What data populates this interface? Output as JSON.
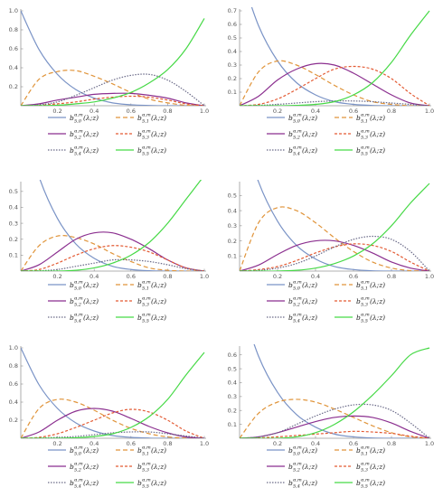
{
  "legend_style": {
    "b0": {
      "color": "#7a93c6",
      "dash": ""
    },
    "b1": {
      "color": "#e0943a",
      "dash": "5,3"
    },
    "b2": {
      "color": "#8b2f8f",
      "dash": ""
    },
    "b3": {
      "color": "#e35a33",
      "dash": "3,2"
    },
    "b4": {
      "color": "#6a6a88",
      "dash": "1.5,1.5"
    },
    "b5": {
      "color": "#46d946",
      "dash": ""
    }
  },
  "legend_entries": [
    {
      "key": "b0",
      "base": "b",
      "sup": "α,m",
      "sub": "5,0",
      "arg": "(λ;z)"
    },
    {
      "key": "b1",
      "base": "b",
      "sup": "α,m",
      "sub": "5,1",
      "arg": "(λ;z)"
    },
    {
      "key": "b2",
      "base": "b",
      "sup": "α,m",
      "sub": "5,2",
      "arg": "(λ;z)"
    },
    {
      "key": "b3",
      "base": "b",
      "sup": "α,m",
      "sub": "5,3",
      "arg": "(λ;z)"
    },
    {
      "key": "b4",
      "base": "b",
      "sup": "α,m",
      "sub": "5,4",
      "arg": "(λ;z)"
    },
    {
      "key": "b5",
      "base": "b",
      "sup": "α,m",
      "sub": "5,5",
      "arg": "(λ;z)"
    }
  ],
  "chart_data": [
    {
      "type": "line",
      "xlim": [
        0,
        1
      ],
      "ylim": [
        0,
        1.0
      ],
      "xticks": [
        "0.2",
        "0.4",
        "0.6",
        "0.8",
        "1.0"
      ],
      "yticks": [
        "0.2",
        "0.4",
        "0.6",
        "0.8",
        "1.0"
      ],
      "x": [
        0,
        0.1,
        0.2,
        0.3,
        0.4,
        0.5,
        0.6,
        0.7,
        0.8,
        0.9,
        1.0
      ],
      "series": [
        {
          "key": "b0",
          "values": [
            1.0,
            0.59,
            0.33,
            0.17,
            0.08,
            0.03,
            0.01,
            0.003,
            0.0,
            0.0,
            0.0
          ]
        },
        {
          "key": "b1",
          "values": [
            0.0,
            0.28,
            0.36,
            0.37,
            0.31,
            0.23,
            0.14,
            0.07,
            0.03,
            0.005,
            0.0
          ]
        },
        {
          "key": "b2",
          "values": [
            0.0,
            0.02,
            0.06,
            0.09,
            0.12,
            0.13,
            0.13,
            0.11,
            0.08,
            0.03,
            0.0
          ]
        },
        {
          "key": "b3",
          "values": [
            0.0,
            0.005,
            0.02,
            0.04,
            0.07,
            0.09,
            0.1,
            0.09,
            0.06,
            0.02,
            0.0
          ]
        },
        {
          "key": "b4",
          "values": [
            0.0,
            0.01,
            0.04,
            0.11,
            0.19,
            0.27,
            0.32,
            0.33,
            0.27,
            0.15,
            0.0
          ]
        },
        {
          "key": "b5",
          "values": [
            0.0,
            0.0,
            0.005,
            0.02,
            0.04,
            0.08,
            0.14,
            0.24,
            0.38,
            0.6,
            0.92
          ]
        }
      ]
    },
    {
      "type": "line",
      "xlim": [
        0,
        1
      ],
      "ylim": [
        0,
        0.7
      ],
      "xticks": [
        "0.2",
        "0.4",
        "0.6",
        "0.8",
        "1.0"
      ],
      "yticks": [
        "0.1",
        "0.2",
        "0.3",
        "0.4",
        "0.5",
        "0.6",
        "0.7"
      ],
      "x": [
        0,
        0.1,
        0.2,
        0.3,
        0.4,
        0.5,
        0.6,
        0.7,
        0.8,
        0.9,
        1.0
      ],
      "series": [
        {
          "key": "b0",
          "values": [
            1.0,
            0.59,
            0.33,
            0.17,
            0.08,
            0.03,
            0.01,
            0.002,
            0.0,
            0.0,
            0.0
          ]
        },
        {
          "key": "b1",
          "values": [
            0.0,
            0.25,
            0.33,
            0.3,
            0.23,
            0.15,
            0.08,
            0.03,
            0.01,
            0.0,
            0.0
          ]
        },
        {
          "key": "b2",
          "values": [
            0.0,
            0.07,
            0.19,
            0.27,
            0.31,
            0.3,
            0.24,
            0.16,
            0.08,
            0.02,
            0.0
          ]
        },
        {
          "key": "b3",
          "values": [
            0.0,
            0.01,
            0.05,
            0.12,
            0.2,
            0.27,
            0.29,
            0.27,
            0.2,
            0.09,
            0.0
          ]
        },
        {
          "key": "b4",
          "values": [
            0.0,
            0.003,
            0.01,
            0.02,
            0.03,
            0.035,
            0.035,
            0.03,
            0.02,
            0.01,
            0.0
          ]
        },
        {
          "key": "b5",
          "values": [
            0.0,
            0.0,
            0.0,
            0.003,
            0.01,
            0.03,
            0.08,
            0.17,
            0.32,
            0.52,
            0.7
          ]
        }
      ]
    },
    {
      "type": "line",
      "xlim": [
        0,
        1
      ],
      "ylim": [
        0,
        0.55
      ],
      "xticks": [
        "0.2",
        "0.4",
        "0.6",
        "0.8",
        "1.0"
      ],
      "yticks": [
        "0.1",
        "0.2",
        "0.3",
        "0.4",
        "0.5"
      ],
      "x": [
        0,
        0.1,
        0.2,
        0.3,
        0.4,
        0.5,
        0.6,
        0.7,
        0.8,
        0.9,
        1.0
      ],
      "series": [
        {
          "key": "b0",
          "values": [
            1.0,
            0.59,
            0.33,
            0.17,
            0.08,
            0.03,
            0.01,
            0.002,
            0.0,
            0.0,
            0.0
          ]
        },
        {
          "key": "b1",
          "values": [
            0.0,
            0.16,
            0.22,
            0.21,
            0.17,
            0.11,
            0.06,
            0.02,
            0.005,
            0.0,
            0.0
          ]
        },
        {
          "key": "b2",
          "values": [
            0.0,
            0.04,
            0.12,
            0.2,
            0.24,
            0.24,
            0.2,
            0.14,
            0.07,
            0.02,
            0.0
          ]
        },
        {
          "key": "b3",
          "values": [
            0.0,
            0.01,
            0.05,
            0.1,
            0.14,
            0.16,
            0.15,
            0.12,
            0.07,
            0.02,
            0.0
          ]
        },
        {
          "key": "b4",
          "values": [
            0.0,
            0.002,
            0.01,
            0.03,
            0.05,
            0.07,
            0.07,
            0.06,
            0.04,
            0.015,
            0.0
          ]
        },
        {
          "key": "b5",
          "values": [
            0.0,
            0.0,
            0.0,
            0.005,
            0.02,
            0.05,
            0.1,
            0.18,
            0.3,
            0.45,
            0.6
          ]
        }
      ]
    },
    {
      "type": "line",
      "xlim": [
        0,
        1
      ],
      "ylim": [
        0,
        0.58
      ],
      "xticks": [
        "0.2",
        "0.4",
        "0.6",
        "0.8",
        "1.0"
      ],
      "yticks": [
        "0.1",
        "0.2",
        "0.3",
        "0.4",
        "0.5"
      ],
      "x": [
        0,
        0.1,
        0.2,
        0.3,
        0.4,
        0.5,
        0.6,
        0.7,
        0.8,
        0.9,
        1.0
      ],
      "series": [
        {
          "key": "b0",
          "values": [
            1.0,
            0.59,
            0.33,
            0.17,
            0.08,
            0.03,
            0.01,
            0.002,
            0.0,
            0.0,
            0.0
          ]
        },
        {
          "key": "b1",
          "values": [
            0.0,
            0.32,
            0.42,
            0.4,
            0.32,
            0.22,
            0.13,
            0.06,
            0.02,
            0.003,
            0.0
          ]
        },
        {
          "key": "b2",
          "values": [
            0.0,
            0.04,
            0.11,
            0.17,
            0.2,
            0.2,
            0.17,
            0.12,
            0.06,
            0.02,
            0.0
          ]
        },
        {
          "key": "b3",
          "values": [
            0.0,
            0.01,
            0.03,
            0.07,
            0.12,
            0.16,
            0.18,
            0.17,
            0.13,
            0.06,
            0.0
          ]
        },
        {
          "key": "b4",
          "values": [
            0.0,
            0.005,
            0.02,
            0.05,
            0.1,
            0.16,
            0.21,
            0.23,
            0.21,
            0.13,
            0.0
          ]
        },
        {
          "key": "b5",
          "values": [
            0.0,
            0.0,
            0.0,
            0.005,
            0.02,
            0.05,
            0.1,
            0.18,
            0.3,
            0.45,
            0.58
          ]
        }
      ]
    },
    {
      "type": "line",
      "xlim": [
        0,
        1
      ],
      "ylim": [
        0,
        1.0
      ],
      "xticks": [
        "0.2",
        "0.4",
        "0.6",
        "0.8",
        "1.0"
      ],
      "yticks": [
        "0.2",
        "0.4",
        "0.6",
        "0.8",
        "1.0"
      ],
      "x": [
        0,
        0.1,
        0.2,
        0.3,
        0.4,
        0.5,
        0.6,
        0.7,
        0.8,
        0.9,
        1.0
      ],
      "series": [
        {
          "key": "b0",
          "values": [
            1.0,
            0.59,
            0.33,
            0.17,
            0.08,
            0.03,
            0.01,
            0.002,
            0.0,
            0.0,
            0.0
          ]
        },
        {
          "key": "b1",
          "values": [
            0.0,
            0.33,
            0.43,
            0.4,
            0.31,
            0.2,
            0.11,
            0.05,
            0.015,
            0.002,
            0.0
          ]
        },
        {
          "key": "b2",
          "values": [
            0.0,
            0.07,
            0.2,
            0.3,
            0.33,
            0.3,
            0.22,
            0.13,
            0.06,
            0.015,
            0.0
          ]
        },
        {
          "key": "b3",
          "values": [
            0.0,
            0.01,
            0.05,
            0.12,
            0.2,
            0.28,
            0.32,
            0.29,
            0.2,
            0.08,
            0.0
          ]
        },
        {
          "key": "b4",
          "values": [
            0.0,
            0.002,
            0.01,
            0.02,
            0.04,
            0.06,
            0.07,
            0.07,
            0.05,
            0.025,
            0.0
          ]
        },
        {
          "key": "b5",
          "values": [
            0.0,
            0.0,
            0.0,
            0.005,
            0.02,
            0.05,
            0.12,
            0.24,
            0.43,
            0.7,
            0.95
          ]
        }
      ]
    },
    {
      "type": "line",
      "xlim": [
        0,
        1
      ],
      "ylim": [
        0,
        0.65
      ],
      "xticks": [
        "0.2",
        "0.4",
        "0.6",
        "0.8",
        "1.0"
      ],
      "yticks": [
        "0.1",
        "0.2",
        "0.3",
        "0.4",
        "0.5",
        "0.6"
      ],
      "x": [
        0,
        0.1,
        0.2,
        0.3,
        0.4,
        0.5,
        0.6,
        0.7,
        0.8,
        0.9,
        1.0
      ],
      "series": [
        {
          "key": "b0",
          "values": [
            1.0,
            0.59,
            0.33,
            0.17,
            0.08,
            0.03,
            0.01,
            0.002,
            0.0,
            0.0,
            0.0
          ]
        },
        {
          "key": "b1",
          "values": [
            0.0,
            0.18,
            0.26,
            0.28,
            0.26,
            0.21,
            0.15,
            0.09,
            0.04,
            0.01,
            0.0
          ]
        },
        {
          "key": "b2",
          "values": [
            0.0,
            0.01,
            0.04,
            0.08,
            0.12,
            0.15,
            0.16,
            0.15,
            0.11,
            0.05,
            0.0
          ]
        },
        {
          "key": "b3",
          "values": [
            0.0,
            0.003,
            0.01,
            0.02,
            0.03,
            0.04,
            0.05,
            0.045,
            0.035,
            0.015,
            0.0
          ]
        },
        {
          "key": "b4",
          "values": [
            0.0,
            0.01,
            0.04,
            0.1,
            0.16,
            0.21,
            0.24,
            0.24,
            0.2,
            0.11,
            0.0
          ]
        },
        {
          "key": "b5",
          "values": [
            0.0,
            0.0,
            0.0,
            0.01,
            0.04,
            0.1,
            0.19,
            0.31,
            0.45,
            0.6,
            0.65
          ]
        }
      ]
    }
  ]
}
